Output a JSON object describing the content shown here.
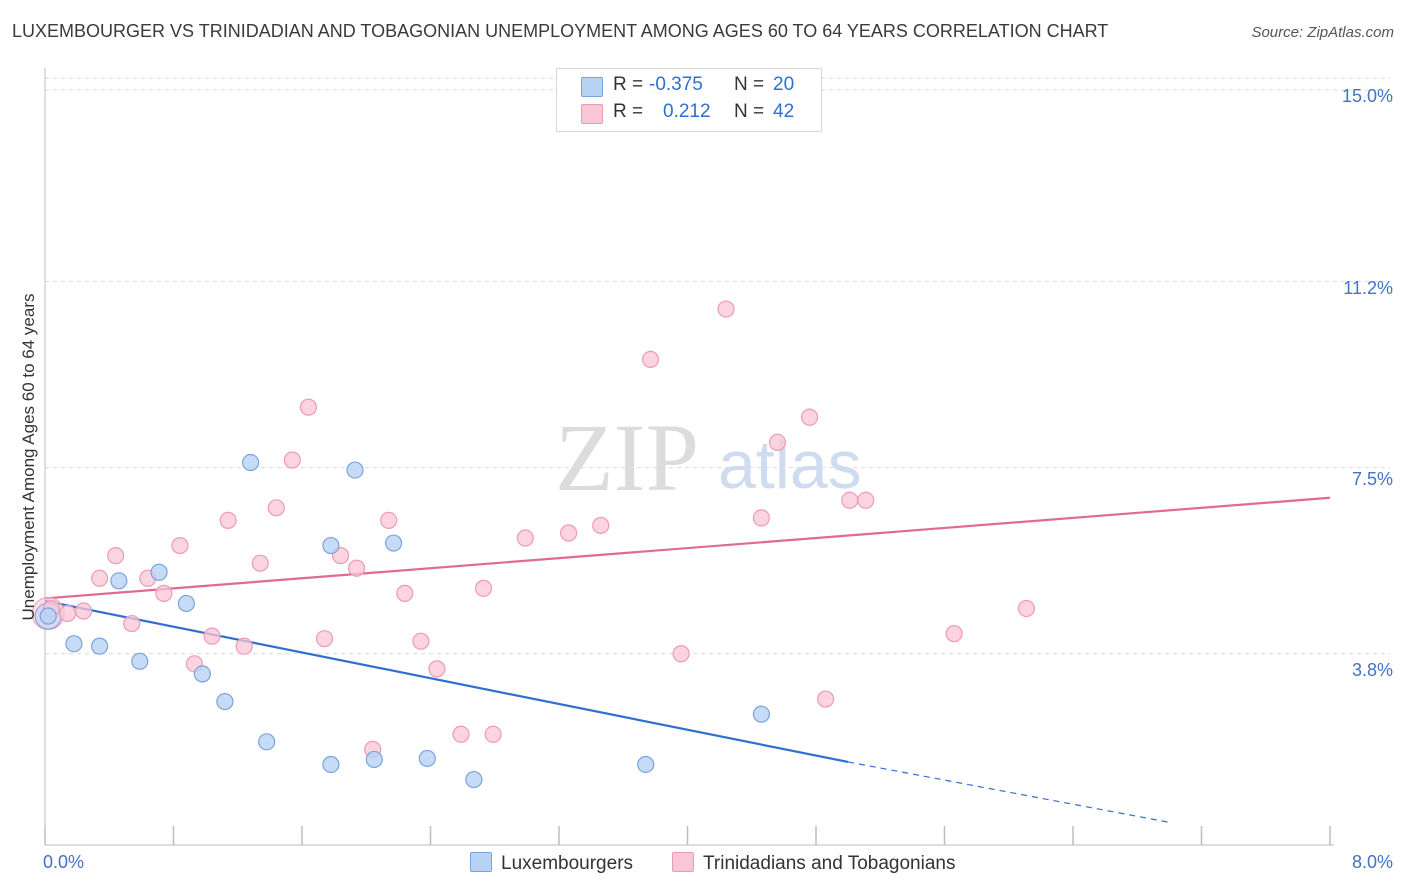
{
  "header": {
    "title": "LUXEMBOURGER VS TRINIDADIAN AND TOBAGONIAN UNEMPLOYMENT AMONG AGES 60 TO 64 YEARS CORRELATION CHART",
    "source": "Source: ZipAtlas.com"
  },
  "watermark": {
    "zip": "ZIP",
    "atlas": "atlas"
  },
  "legend": {
    "r_label": "R =",
    "n_label": "N =",
    "rows": [
      {
        "name": "Luxembourgers",
        "r": "-0.375",
        "n": "20"
      },
      {
        "name": "Trinidadians and Tobagonians",
        "r": "0.212",
        "n": "42"
      }
    ]
  },
  "axis": {
    "ylabel": "Unemployment Among Ages 60 to 64 years",
    "y_ticks": [
      "15.0%",
      "11.2%",
      "7.5%",
      "3.8%"
    ],
    "x_min_label": "0.0%",
    "x_max_label": "8.0%"
  },
  "colors": {
    "blue_fill": "#b8d2f4",
    "blue_stroke": "#7aa3dd",
    "blue_line": "#2f6fd1",
    "pink_fill": "#f9c6d6",
    "pink_stroke": "#ee9ab6",
    "pink_line": "#e06a92",
    "tick_text": "#4472c4",
    "grid": "#d9d9d9"
  },
  "chart_data": {
    "type": "scatter",
    "xlabel": "",
    "ylabel": "Unemployment Among Ages 60 to 64 years",
    "xlim": [
      0,
      8.0
    ],
    "ylim": [
      0,
      15.4
    ],
    "y_gridlines": [
      3.8,
      7.5,
      11.2,
      15.0
    ],
    "series": [
      {
        "name": "Luxembourgers",
        "color": "#b8d2f4",
        "points": [
          [
            0.02,
            4.55
          ],
          [
            0.18,
            4.0
          ],
          [
            0.34,
            3.95
          ],
          [
            0.46,
            5.25
          ],
          [
            0.59,
            3.65
          ],
          [
            0.71,
            5.42
          ],
          [
            0.88,
            4.8
          ],
          [
            0.98,
            3.4
          ],
          [
            1.12,
            2.85
          ],
          [
            1.28,
            7.6
          ],
          [
            1.38,
            2.05
          ],
          [
            1.78,
            5.95
          ],
          [
            1.78,
            1.6
          ],
          [
            1.93,
            7.45
          ],
          [
            2.05,
            1.7
          ],
          [
            2.17,
            6.0
          ],
          [
            2.38,
            1.72
          ],
          [
            2.67,
            1.3
          ],
          [
            3.74,
            1.6
          ],
          [
            4.46,
            2.6
          ]
        ],
        "trend": {
          "x": [
            0.0,
            5.0
          ],
          "y": [
            4.85,
            1.65
          ],
          "dashed_to": [
            7.0,
            0.45
          ]
        }
      },
      {
        "name": "Trinidadians and Tobagonians",
        "color": "#f9c6d6",
        "points": [
          [
            0.04,
            4.7
          ],
          [
            0.14,
            4.6
          ],
          [
            0.24,
            4.65
          ],
          [
            0.34,
            5.3
          ],
          [
            0.44,
            5.75
          ],
          [
            0.54,
            4.4
          ],
          [
            0.64,
            5.3
          ],
          [
            0.74,
            5.0
          ],
          [
            0.84,
            5.95
          ],
          [
            0.93,
            3.6
          ],
          [
            1.04,
            4.15
          ],
          [
            1.14,
            6.45
          ],
          [
            1.24,
            3.95
          ],
          [
            1.34,
            5.6
          ],
          [
            1.44,
            6.7
          ],
          [
            1.54,
            7.65
          ],
          [
            1.64,
            8.7
          ],
          [
            1.74,
            4.1
          ],
          [
            1.84,
            5.75
          ],
          [
            1.94,
            5.5
          ],
          [
            2.04,
            1.9
          ],
          [
            2.14,
            6.45
          ],
          [
            2.24,
            5.0
          ],
          [
            2.34,
            4.05
          ],
          [
            2.44,
            3.5
          ],
          [
            2.59,
            2.2
          ],
          [
            2.73,
            5.1
          ],
          [
            2.79,
            2.2
          ],
          [
            2.99,
            6.1
          ],
          [
            3.26,
            6.2
          ],
          [
            3.46,
            6.35
          ],
          [
            3.77,
            9.65
          ],
          [
            3.96,
            3.8
          ],
          [
            4.24,
            10.65
          ],
          [
            4.46,
            6.5
          ],
          [
            4.56,
            8.0
          ],
          [
            4.76,
            8.5
          ],
          [
            4.86,
            2.9
          ],
          [
            5.01,
            6.85
          ],
          [
            5.11,
            6.85
          ],
          [
            5.66,
            4.2
          ],
          [
            6.11,
            4.7
          ]
        ],
        "trend": {
          "x": [
            0.0,
            8.0
          ],
          "y": [
            4.9,
            6.9
          ]
        }
      }
    ]
  }
}
